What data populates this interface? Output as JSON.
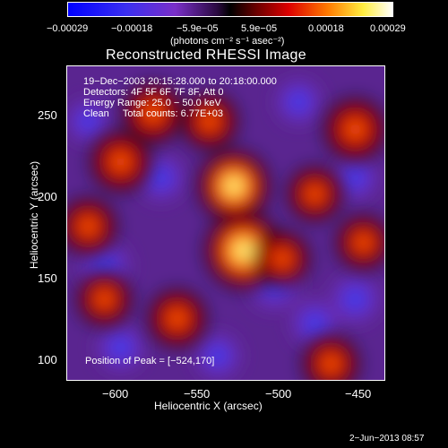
{
  "chart_data": {
    "type": "heatmap",
    "title": "Reconstructed RHESSI Image",
    "xlabel": "Heliocentric X (arcsec)",
    "ylabel": "Heliocentric Y (arcsec)",
    "xlim": [
      -633,
      -437
    ],
    "ylim": [
      90,
      284
    ],
    "x_ticks": [
      -600,
      -550,
      -500,
      -450
    ],
    "x_tick_labels": [
      "−600",
      "−550",
      "−500",
      "−450"
    ],
    "y_ticks": [
      100,
      150,
      200,
      250
    ],
    "y_tick_labels": [
      "100",
      "150",
      "200",
      "250"
    ],
    "colorbar": {
      "colormap": "blue-purple-black-red-orange-yellow-white",
      "range": [
        -0.00029,
        0.00029
      ],
      "tick_labels": [
        "−0.00029",
        "−0.00018",
        "−5.9e−05",
        "5.9e−05",
        "0.00018",
        "0.00029"
      ],
      "unit_label": "(photons cm⁻² s⁻¹ asec⁻²)"
    },
    "annotations": {
      "time_range": "19−Dec−2003 20:15:28.000 to 20:18:00.000",
      "detectors": "Detectors: 4F 5F 6F 7F 8F, Att 0",
      "energy_range": "Energy Range: 25.0 − 50.0 keV",
      "method_counts": "Clean     Total counts: 6.77E+03",
      "peak": "Position of Peak = [−524,170]"
    },
    "peak_position": [
      -524,
      170
    ],
    "bright_sources": [
      {
        "x": -524,
        "y": 170,
        "level": 1.0
      },
      {
        "x": -530,
        "y": 210,
        "level": 0.85
      },
      {
        "x": -600,
        "y": 225,
        "level": 0.55
      },
      {
        "x": -580,
        "y": 255,
        "level": 0.55
      },
      {
        "x": -455,
        "y": 245,
        "level": 0.6
      },
      {
        "x": -565,
        "y": 128,
        "level": 0.5
      },
      {
        "x": -620,
        "y": 185,
        "level": 0.45
      },
      {
        "x": -480,
        "y": 205,
        "level": 0.4
      },
      {
        "x": -470,
        "y": 100,
        "level": 0.45
      },
      {
        "x": -500,
        "y": 165,
        "level": 0.4
      },
      {
        "x": -610,
        "y": 140,
        "level": 0.4
      },
      {
        "x": -450,
        "y": 175,
        "level": 0.4
      },
      {
        "x": -545,
        "y": 250,
        "level": 0.45
      }
    ],
    "negative_sources": [
      {
        "x": -610,
        "y": 160,
        "level": 0.9
      },
      {
        "x": -505,
        "y": 150,
        "level": 1.0
      },
      {
        "x": -575,
        "y": 215,
        "level": 0.7
      },
      {
        "x": -490,
        "y": 262,
        "level": 0.6
      },
      {
        "x": -455,
        "y": 140,
        "level": 0.8
      },
      {
        "x": -540,
        "y": 105,
        "level": 0.6
      },
      {
        "x": -600,
        "y": 110,
        "level": 0.7
      },
      {
        "x": -480,
        "y": 125,
        "level": 0.7
      },
      {
        "x": -455,
        "y": 215,
        "level": 0.6
      },
      {
        "x": -620,
        "y": 250,
        "level": 0.5
      }
    ]
  },
  "footer": {
    "date": "2−Jun−2013 08:57"
  },
  "colors": {
    "background": "#000000",
    "text": "#ffffff"
  }
}
